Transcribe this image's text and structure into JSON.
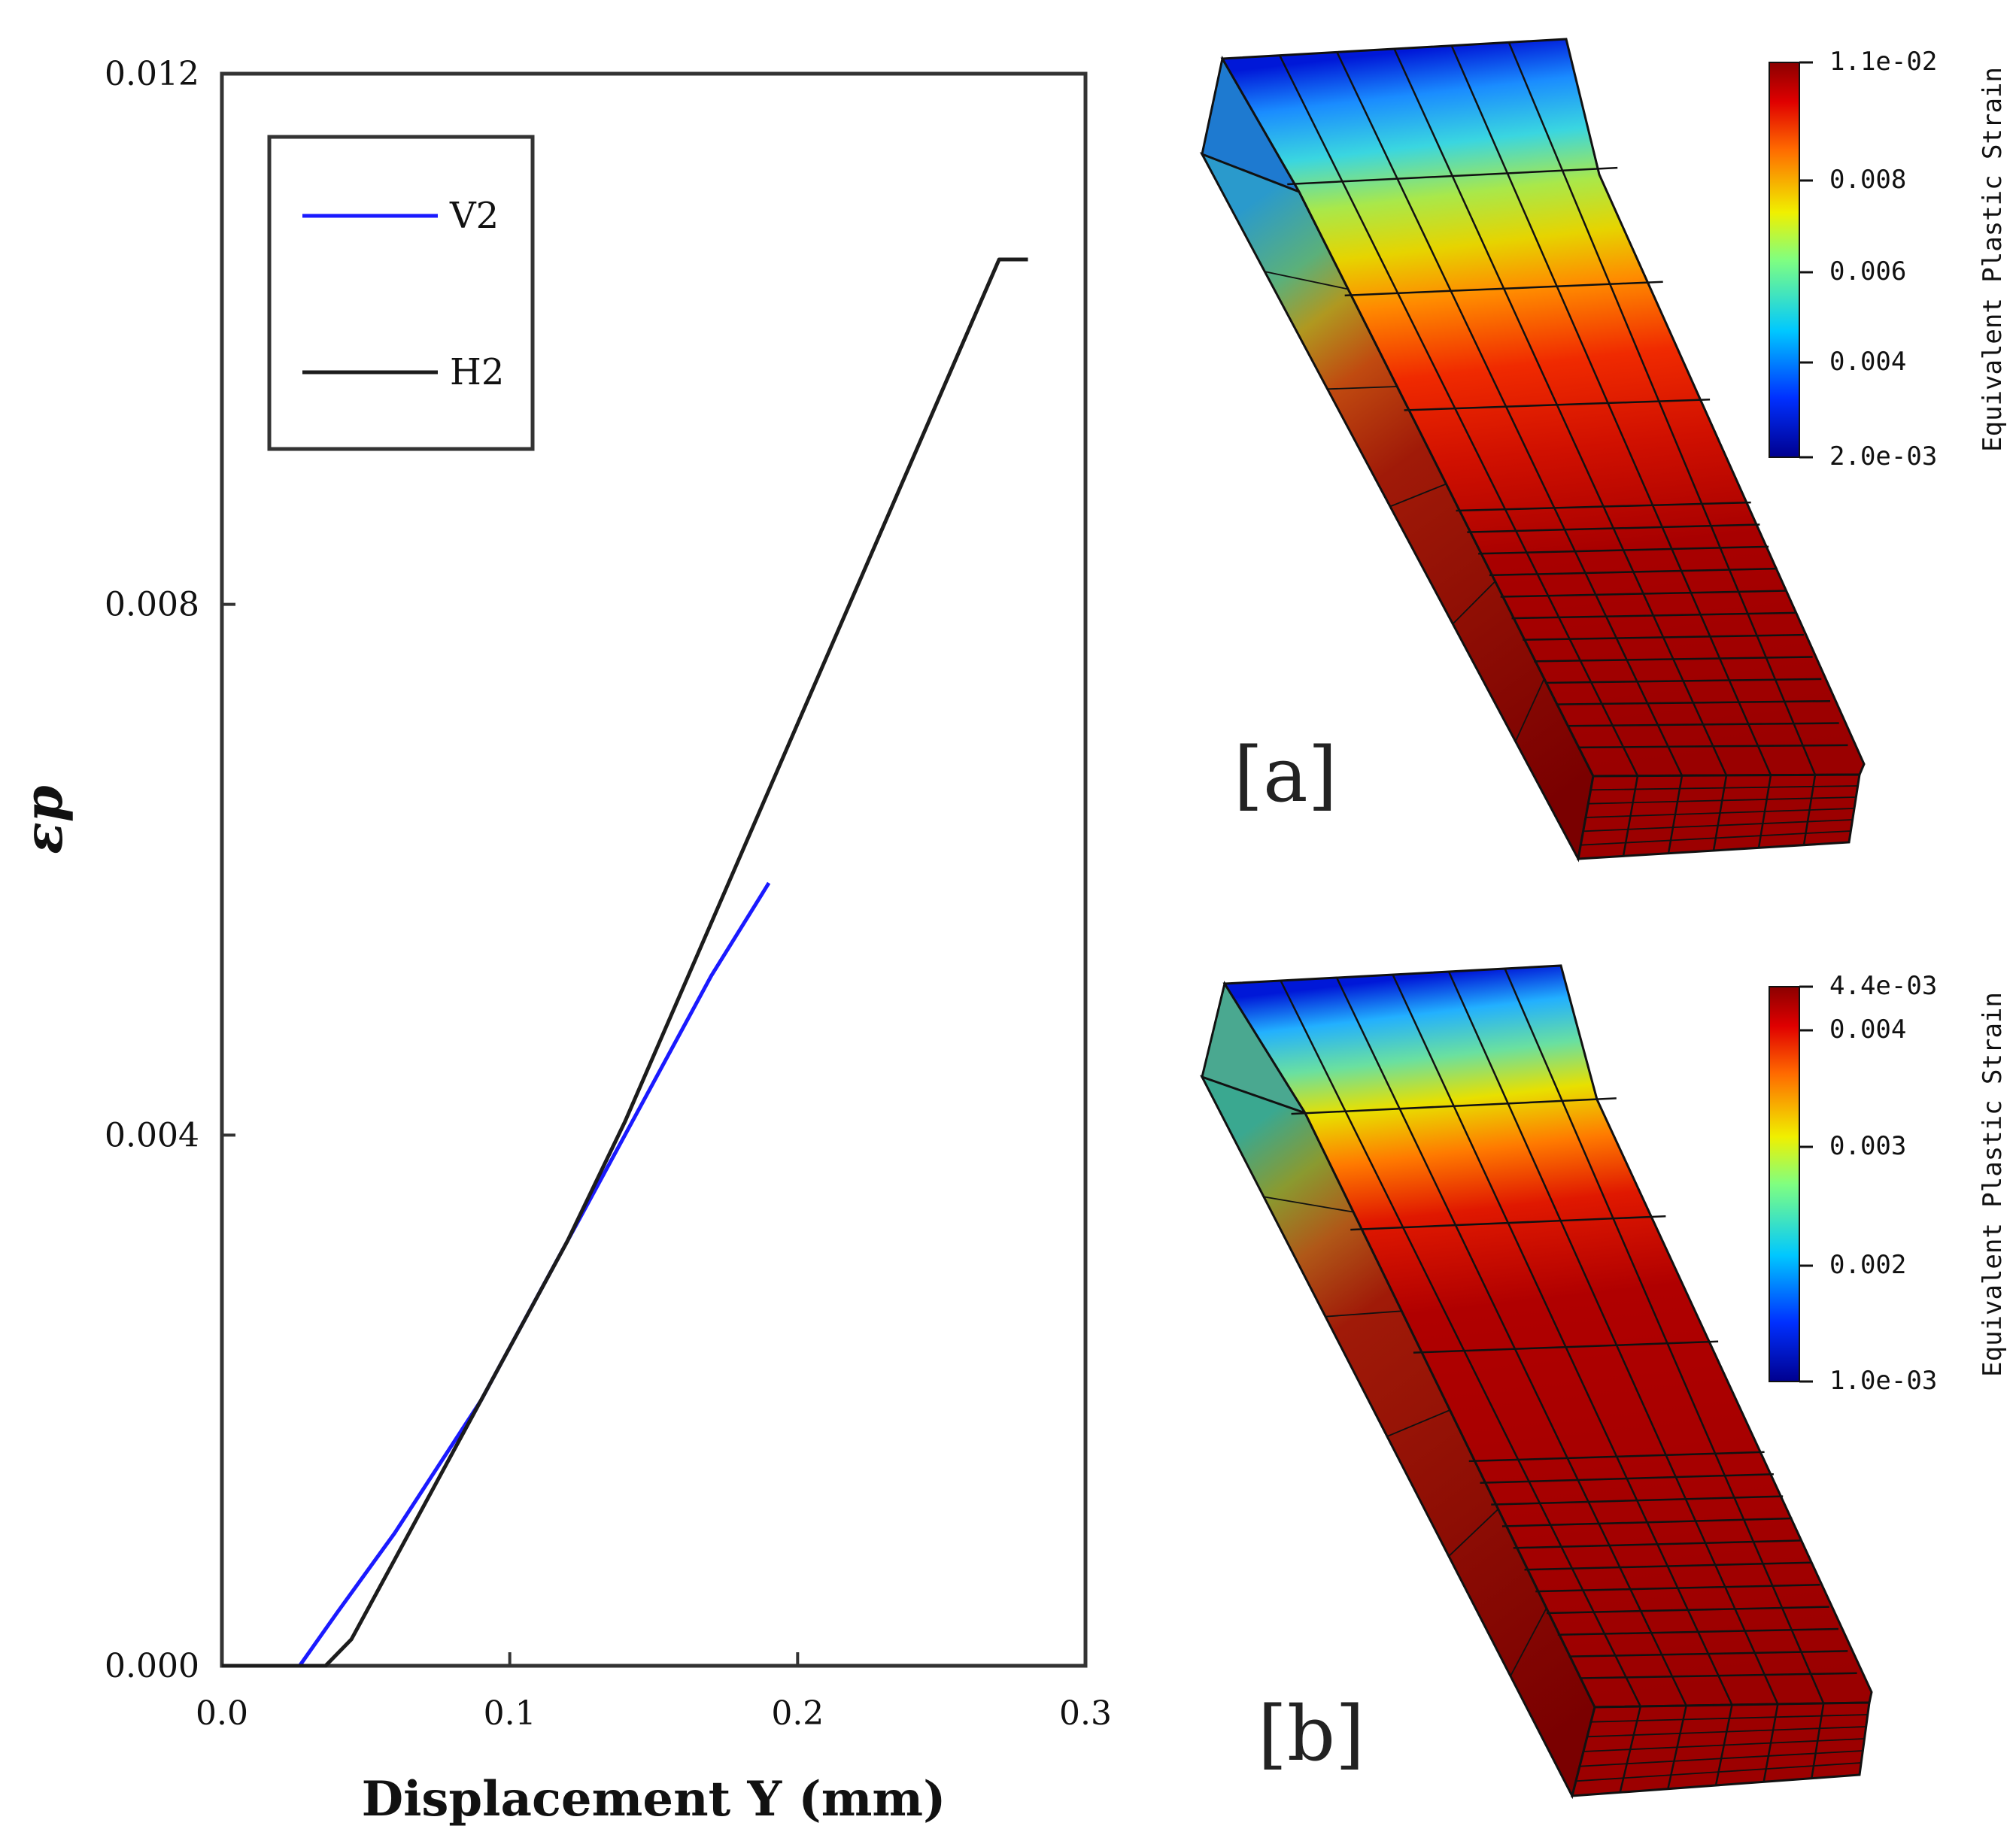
{
  "chart_data": {
    "type": "line",
    "xlabel": "Displacement Y (mm)",
    "ylabel": "εp",
    "xlim": [
      0.0,
      0.3
    ],
    "ylim": [
      0.0,
      0.012
    ],
    "xticks": [
      "0.0",
      "0.1",
      "0.2",
      "0.3"
    ],
    "yticks": [
      "0.000",
      "0.004",
      "0.008",
      "0.012"
    ],
    "grid": false,
    "legend": "top-left",
    "series": [
      {
        "name": "V2",
        "color": "#1a1aff",
        "x": [
          0.0,
          0.027,
          0.04,
          0.06,
          0.075,
          0.09,
          0.11,
          0.13,
          0.15,
          0.17,
          0.19
        ],
        "y": [
          0.0,
          0.0,
          0.0004,
          0.001,
          0.0015,
          0.002,
          0.0028,
          0.0036,
          0.0044,
          0.0052,
          0.0059
        ]
      },
      {
        "name": "H2",
        "color": "#1c1c1c",
        "x": [
          0.0,
          0.036,
          0.045,
          0.06,
          0.08,
          0.1,
          0.12,
          0.14,
          0.16,
          0.18,
          0.2,
          0.22,
          0.24,
          0.26,
          0.27,
          0.28
        ],
        "y": [
          0.0,
          0.0,
          0.0002,
          0.0008,
          0.0016,
          0.0024,
          0.0032,
          0.0041,
          0.0051,
          0.0061,
          0.0071,
          0.0081,
          0.0091,
          0.0101,
          0.0106,
          0.0106
        ]
      }
    ]
  },
  "contour_panels": [
    {
      "tag": "[a]",
      "colorbar_title": "Equivalent Plastic Strain",
      "colorbar_min": "2.0e-03",
      "colorbar_max": "1.1e-02",
      "colorbar_ticks": [
        "0.004",
        "0.006",
        "0.008"
      ]
    },
    {
      "tag": "[b]",
      "colorbar_title": "Equivalent Plastic Strain",
      "colorbar_min": "1.0e-03",
      "colorbar_max": "4.4e-03",
      "colorbar_ticks": [
        "0.002",
        "0.003",
        "0.004"
      ]
    }
  ],
  "colors": {
    "axis": "#333333",
    "jet_low": "#00008f",
    "jet_high": "#8b0000"
  }
}
